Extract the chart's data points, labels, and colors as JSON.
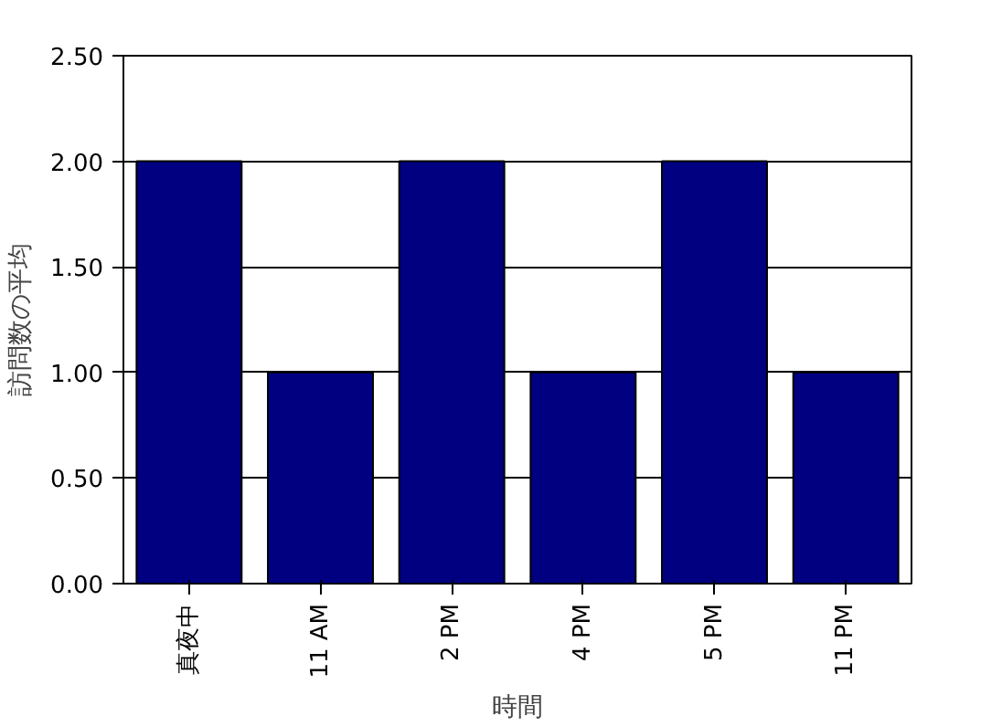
{
  "chart_data": {
    "type": "bar",
    "xlabel": "時間",
    "ylabel": "訪問数の平均",
    "categories": [
      "真夜中",
      "11 AM",
      "2 PM",
      "4 PM",
      "5 PM",
      "11 PM"
    ],
    "values": [
      2,
      1,
      2,
      1,
      2,
      1
    ],
    "color": "#000080",
    "ylim": [
      0,
      2.5
    ],
    "yticks": [
      {
        "value": 0,
        "label": "0.00"
      },
      {
        "value": 0.5,
        "label": "0.50"
      },
      {
        "value": 1,
        "label": "1.00"
      },
      {
        "value": 1.5,
        "label": "1.50"
      },
      {
        "value": 2,
        "label": "2.00"
      },
      {
        "value": 2.5,
        "label": "2.50"
      }
    ],
    "grid": "y"
  }
}
